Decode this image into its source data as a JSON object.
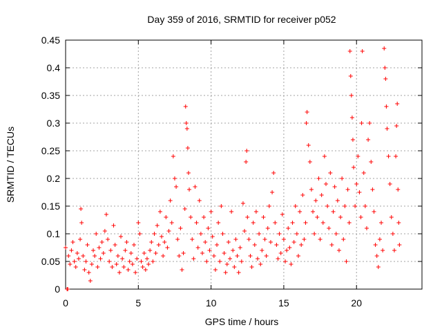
{
  "chart_data": {
    "type": "scatter",
    "title": "Day 359 of 2016, SRMTID for receiver p052",
    "xlabel": "GPS time / hours",
    "ylabel": "SRMTID / TECUs",
    "xlim": [
      0,
      24.5
    ],
    "ylim": [
      0,
      0.45
    ],
    "xticks": [
      0,
      5,
      10,
      15,
      20
    ],
    "xtick_labels": [
      "0",
      "5",
      "10",
      "15",
      "20"
    ],
    "yticks": [
      0,
      0.05,
      0.1,
      0.15,
      0.2,
      0.25,
      0.3,
      0.35,
      0.4,
      0.45
    ],
    "ytick_labels": [
      "0",
      "0.05",
      "0.1",
      "0.15",
      "0.2",
      "0.25",
      "0.3",
      "0.35",
      "0.4",
      "0.45"
    ],
    "grid": true,
    "marker": "+",
    "color": "#ff0000",
    "series": [
      {
        "name": "SRMTID",
        "points": [
          [
            0.0,
            0.075
          ],
          [
            0.1,
            0.0
          ],
          [
            0.15,
            0.0
          ],
          [
            0.2,
            0.06
          ],
          [
            0.3,
            0.045
          ],
          [
            0.4,
            0.07
          ],
          [
            0.5,
            0.085
          ],
          [
            0.6,
            0.05
          ],
          [
            0.7,
            0.04
          ],
          [
            0.8,
            0.065
          ],
          [
            0.9,
            0.055
          ],
          [
            1.0,
            0.09
          ],
          [
            1.05,
            0.145
          ],
          [
            1.1,
            0.12
          ],
          [
            1.2,
            0.06
          ],
          [
            1.3,
            0.035
          ],
          [
            1.4,
            0.05
          ],
          [
            1.5,
            0.08
          ],
          [
            1.6,
            0.03
          ],
          [
            1.7,
            0.015
          ],
          [
            1.8,
            0.045
          ],
          [
            1.9,
            0.07
          ],
          [
            2.0,
            0.06
          ],
          [
            2.1,
            0.1
          ],
          [
            2.2,
            0.04
          ],
          [
            2.3,
            0.075
          ],
          [
            2.4,
            0.055
          ],
          [
            2.5,
            0.085
          ],
          [
            2.6,
            0.065
          ],
          [
            2.7,
            0.105
          ],
          [
            2.8,
            0.135
          ],
          [
            2.9,
            0.09
          ],
          [
            3.0,
            0.05
          ],
          [
            3.1,
            0.07
          ],
          [
            3.2,
            0.04
          ],
          [
            3.3,
            0.115
          ],
          [
            3.4,
            0.08
          ],
          [
            3.5,
            0.045
          ],
          [
            3.6,
            0.06
          ],
          [
            3.7,
            0.03
          ],
          [
            3.8,
            0.095
          ],
          [
            3.9,
            0.055
          ],
          [
            4.0,
            0.04
          ],
          [
            4.1,
            0.07
          ],
          [
            4.2,
            0.085
          ],
          [
            4.3,
            0.035
          ],
          [
            4.4,
            0.05
          ],
          [
            4.5,
            0.065
          ],
          [
            4.6,
            0.045
          ],
          [
            4.7,
            0.08
          ],
          [
            4.8,
            0.03
          ],
          [
            4.9,
            0.055
          ],
          [
            5.0,
            0.12
          ],
          [
            5.1,
            0.1
          ],
          [
            5.2,
            0.05
          ],
          [
            5.3,
            0.04
          ],
          [
            5.4,
            0.065
          ],
          [
            5.5,
            0.035
          ],
          [
            5.6,
            0.055
          ],
          [
            5.7,
            0.045
          ],
          [
            5.8,
            0.07
          ],
          [
            5.9,
            0.085
          ],
          [
            6.0,
            0.05
          ],
          [
            6.1,
            0.1
          ],
          [
            6.2,
            0.065
          ],
          [
            6.3,
            0.115
          ],
          [
            6.4,
            0.08
          ],
          [
            6.5,
            0.14
          ],
          [
            6.6,
            0.095
          ],
          [
            6.7,
            0.06
          ],
          [
            6.8,
            0.085
          ],
          [
            6.9,
            0.13
          ],
          [
            7.0,
            0.075
          ],
          [
            7.1,
            0.105
          ],
          [
            7.2,
            0.16
          ],
          [
            7.3,
            0.12
          ],
          [
            7.4,
            0.24
          ],
          [
            7.5,
            0.2
          ],
          [
            7.6,
            0.185
          ],
          [
            7.7,
            0.09
          ],
          [
            7.8,
            0.06
          ],
          [
            7.9,
            0.11
          ],
          [
            8.0,
            0.035
          ],
          [
            8.1,
            0.065
          ],
          [
            8.2,
            0.145
          ],
          [
            8.25,
            0.33
          ],
          [
            8.3,
            0.3
          ],
          [
            8.35,
            0.29
          ],
          [
            8.4,
            0.255
          ],
          [
            8.45,
            0.21
          ],
          [
            8.5,
            0.18
          ],
          [
            8.6,
            0.13
          ],
          [
            8.7,
            0.09
          ],
          [
            8.8,
            0.055
          ],
          [
            8.9,
            0.185
          ],
          [
            9.0,
            0.12
          ],
          [
            9.1,
            0.075
          ],
          [
            9.2,
            0.16
          ],
          [
            9.3,
            0.1
          ],
          [
            9.4,
            0.065
          ],
          [
            9.5,
            0.13
          ],
          [
            9.6,
            0.085
          ],
          [
            9.7,
            0.05
          ],
          [
            9.8,
            0.11
          ],
          [
            9.9,
            0.07
          ],
          [
            10.0,
            0.14
          ],
          [
            10.1,
            0.095
          ],
          [
            10.2,
            0.06
          ],
          [
            10.3,
            0.035
          ],
          [
            10.4,
            0.08
          ],
          [
            10.5,
            0.12
          ],
          [
            10.6,
            0.05
          ],
          [
            10.7,
            0.15
          ],
          [
            10.8,
            0.1
          ],
          [
            10.9,
            0.065
          ],
          [
            11.0,
            0.03
          ],
          [
            11.1,
            0.045
          ],
          [
            11.2,
            0.085
          ],
          [
            11.3,
            0.055
          ],
          [
            11.4,
            0.14
          ],
          [
            11.5,
            0.07
          ],
          [
            11.6,
            0.04
          ],
          [
            11.7,
            0.09
          ],
          [
            11.8,
            0.06
          ],
          [
            11.9,
            0.03
          ],
          [
            12.0,
            0.075
          ],
          [
            12.1,
            0.05
          ],
          [
            12.2,
            0.155
          ],
          [
            12.3,
            0.105
          ],
          [
            12.4,
            0.23
          ],
          [
            12.45,
            0.25
          ],
          [
            12.5,
            0.13
          ],
          [
            12.6,
            0.09
          ],
          [
            12.7,
            0.06
          ],
          [
            12.8,
            0.04
          ],
          [
            12.9,
            0.12
          ],
          [
            13.0,
            0.08
          ],
          [
            13.1,
            0.14
          ],
          [
            13.2,
            0.055
          ],
          [
            13.3,
            0.1
          ],
          [
            13.4,
            0.045
          ],
          [
            13.5,
            0.07
          ],
          [
            13.6,
            0.13
          ],
          [
            13.7,
            0.09
          ],
          [
            13.8,
            0.06
          ],
          [
            13.9,
            0.11
          ],
          [
            14.0,
            0.15
          ],
          [
            14.1,
            0.085
          ],
          [
            14.2,
            0.175
          ],
          [
            14.3,
            0.21
          ],
          [
            14.4,
            0.12
          ],
          [
            14.5,
            0.08
          ],
          [
            14.6,
            0.055
          ],
          [
            14.7,
            0.1
          ],
          [
            14.8,
            0.065
          ],
          [
            14.9,
            0.135
          ],
          [
            15.0,
            0.09
          ],
          [
            15.1,
            0.05
          ],
          [
            15.2,
            0.07
          ],
          [
            15.3,
            0.11
          ],
          [
            15.4,
            0.075
          ],
          [
            15.5,
            0.045
          ],
          [
            15.6,
            0.12
          ],
          [
            15.7,
            0.085
          ],
          [
            15.8,
            0.15
          ],
          [
            15.9,
            0.1
          ],
          [
            16.0,
            0.06
          ],
          [
            16.1,
            0.14
          ],
          [
            16.2,
            0.08
          ],
          [
            16.3,
            0.17
          ],
          [
            16.4,
            0.09
          ],
          [
            16.5,
            0.12
          ],
          [
            16.55,
            0.3
          ],
          [
            16.6,
            0.32
          ],
          [
            16.7,
            0.26
          ],
          [
            16.8,
            0.23
          ],
          [
            16.9,
            0.18
          ],
          [
            17.0,
            0.14
          ],
          [
            17.1,
            0.1
          ],
          [
            17.2,
            0.16
          ],
          [
            17.3,
            0.13
          ],
          [
            17.4,
            0.2
          ],
          [
            17.5,
            0.09
          ],
          [
            17.6,
            0.17
          ],
          [
            17.7,
            0.12
          ],
          [
            17.8,
            0.24
          ],
          [
            17.9,
            0.19
          ],
          [
            18.0,
            0.15
          ],
          [
            18.1,
            0.11
          ],
          [
            18.2,
            0.21
          ],
          [
            18.3,
            0.08
          ],
          [
            18.4,
            0.14
          ],
          [
            18.5,
            0.185
          ],
          [
            18.6,
            0.1
          ],
          [
            18.7,
            0.16
          ],
          [
            18.8,
            0.07
          ],
          [
            18.9,
            0.13
          ],
          [
            19.0,
            0.2
          ],
          [
            19.1,
            0.09
          ],
          [
            19.2,
            0.15
          ],
          [
            19.3,
            0.05
          ],
          [
            19.4,
            0.18
          ],
          [
            19.5,
            0.12
          ],
          [
            19.55,
            0.43
          ],
          [
            19.6,
            0.385
          ],
          [
            19.65,
            0.35
          ],
          [
            19.7,
            0.31
          ],
          [
            19.75,
            0.27
          ],
          [
            19.8,
            0.22
          ],
          [
            19.9,
            0.15
          ],
          [
            20.0,
            0.19
          ],
          [
            20.1,
            0.24
          ],
          [
            20.2,
            0.175
          ],
          [
            20.3,
            0.13
          ],
          [
            20.35,
            0.3
          ],
          [
            20.4,
            0.43
          ],
          [
            20.5,
            0.21
          ],
          [
            20.6,
            0.15
          ],
          [
            20.7,
            0.11
          ],
          [
            20.8,
            0.27
          ],
          [
            20.9,
            0.3
          ],
          [
            21.0,
            0.23
          ],
          [
            21.1,
            0.18
          ],
          [
            21.2,
            0.14
          ],
          [
            21.3,
            0.08
          ],
          [
            21.4,
            0.06
          ],
          [
            21.5,
            0.04
          ],
          [
            21.6,
            0.09
          ],
          [
            21.7,
            0.12
          ],
          [
            21.8,
            0.07
          ],
          [
            21.9,
            0.435
          ],
          [
            21.95,
            0.4
          ],
          [
            22.0,
            0.38
          ],
          [
            22.05,
            0.33
          ],
          [
            22.1,
            0.29
          ],
          [
            22.2,
            0.24
          ],
          [
            22.3,
            0.19
          ],
          [
            22.4,
            0.13
          ],
          [
            22.5,
            0.1
          ],
          [
            22.6,
            0.07
          ],
          [
            22.7,
            0.24
          ],
          [
            22.75,
            0.295
          ],
          [
            22.8,
            0.335
          ],
          [
            22.85,
            0.18
          ],
          [
            22.9,
            0.12
          ],
          [
            22.95,
            0.08
          ]
        ]
      }
    ]
  }
}
